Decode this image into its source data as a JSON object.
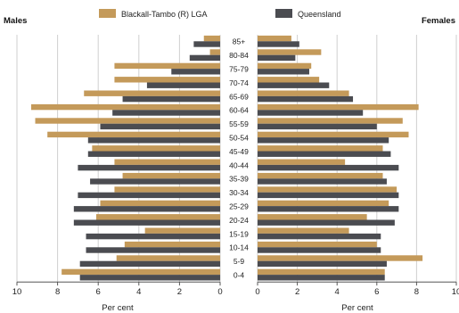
{
  "chart_data": {
    "type": "bar",
    "subtype": "population-pyramid",
    "colors": {
      "local": "#c49a5a",
      "state": "#4b4c51",
      "grid": "#cfcfcf"
    },
    "legend": [
      {
        "key": "local",
        "label": "Blackall-Tambo (R) LGA"
      },
      {
        "key": "state",
        "label": "Queensland"
      }
    ],
    "left_title": "Males",
    "right_title": "Females",
    "xlabel_left": "Per cent",
    "xlabel_right": "Per cent",
    "xlim": [
      0,
      10
    ],
    "xticks": [
      0,
      2,
      4,
      6,
      8,
      10
    ],
    "categories": [
      "85+",
      "80-84",
      "75-79",
      "70-74",
      "65-69",
      "60-64",
      "55-59",
      "50-54",
      "45-49",
      "40-44",
      "35-39",
      "30-34",
      "25-29",
      "20-24",
      "15-19",
      "10-14",
      "5-9",
      "0-4"
    ],
    "series": [
      {
        "name": "Blackall-Tambo (R) LGA",
        "key": "local",
        "side": "Males",
        "values": [
          0.8,
          0.5,
          5.2,
          5.2,
          6.7,
          9.3,
          9.1,
          8.5,
          6.3,
          5.2,
          4.8,
          5.2,
          5.9,
          6.1,
          3.7,
          4.7,
          5.1,
          7.8
        ]
      },
      {
        "name": "Queensland",
        "key": "state",
        "side": "Males",
        "values": [
          1.3,
          1.5,
          2.4,
          3.6,
          4.8,
          5.3,
          5.9,
          6.5,
          6.5,
          7.0,
          6.4,
          7.0,
          7.2,
          7.2,
          6.6,
          6.6,
          6.9,
          6.9
        ]
      },
      {
        "name": "Blackall-Tambo (R) LGA",
        "key": "local",
        "side": "Females",
        "values": [
          1.7,
          3.2,
          2.7,
          3.1,
          4.6,
          8.1,
          7.3,
          7.6,
          6.3,
          4.4,
          6.3,
          7.0,
          6.6,
          5.5,
          4.6,
          6.0,
          8.3,
          6.4
        ]
      },
      {
        "name": "Queensland",
        "key": "state",
        "side": "Females",
        "values": [
          2.1,
          1.9,
          2.6,
          3.6,
          4.8,
          5.3,
          6.0,
          6.6,
          6.7,
          7.1,
          6.5,
          7.1,
          7.1,
          6.9,
          6.2,
          6.2,
          6.5,
          6.4
        ]
      }
    ]
  }
}
